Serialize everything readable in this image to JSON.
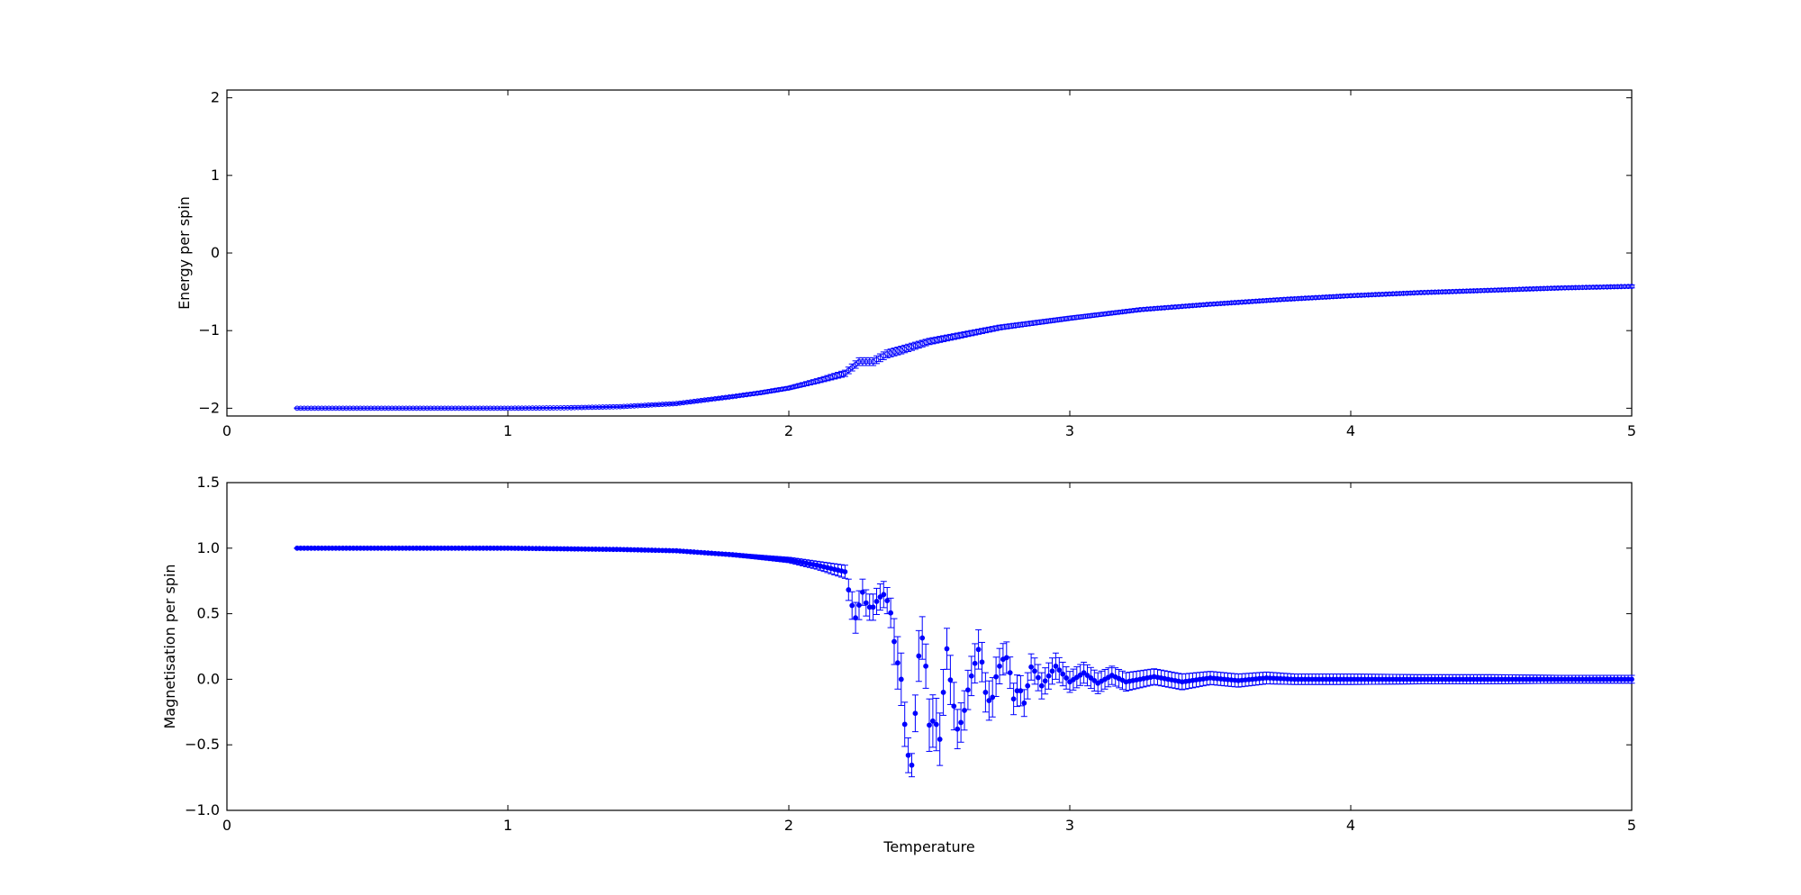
{
  "chart_data": [
    {
      "type": "scatter",
      "ylabel": "Energy per spin",
      "xlabel": "",
      "xlim": [
        0,
        5
      ],
      "ylim": [
        -2.1,
        2.1
      ],
      "xticks": [
        "0",
        "1",
        "2",
        "3",
        "4",
        "5"
      ],
      "yticks": [
        {
          "value": 2,
          "label": "2"
        },
        {
          "value": 1,
          "label": "1"
        },
        {
          "value": 0,
          "label": "0"
        },
        {
          "value": -1,
          "label": "−1"
        },
        {
          "value": -2,
          "label": "−2"
        }
      ],
      "grid": false,
      "series": [
        {
          "color": "#0000ff",
          "marker": "o-open",
          "error_bars": true,
          "points": [
            {
              "x": 0.25,
              "y": -2.0,
              "err": 0.005
            },
            {
              "x": 0.5,
              "y": -2.0,
              "err": 0.005
            },
            {
              "x": 0.75,
              "y": -2.0,
              "err": 0.005
            },
            {
              "x": 1.0,
              "y": -2.0,
              "err": 0.005
            },
            {
              "x": 1.2,
              "y": -1.995,
              "err": 0.006
            },
            {
              "x": 1.4,
              "y": -1.98,
              "err": 0.008
            },
            {
              "x": 1.6,
              "y": -1.94,
              "err": 0.01
            },
            {
              "x": 1.8,
              "y": -1.85,
              "err": 0.015
            },
            {
              "x": 1.9,
              "y": -1.8,
              "err": 0.02
            },
            {
              "x": 2.0,
              "y": -1.74,
              "err": 0.02
            },
            {
              "x": 2.1,
              "y": -1.65,
              "err": 0.03
            },
            {
              "x": 2.2,
              "y": -1.55,
              "err": 0.04
            },
            {
              "x": 2.25,
              "y": -1.4,
              "err": 0.05
            },
            {
              "x": 2.3,
              "y": -1.4,
              "err": 0.05
            },
            {
              "x": 2.35,
              "y": -1.3,
              "err": 0.05
            },
            {
              "x": 2.4,
              "y": -1.25,
              "err": 0.05
            },
            {
              "x": 2.5,
              "y": -1.14,
              "err": 0.04
            },
            {
              "x": 2.75,
              "y": -0.96,
              "err": 0.03
            },
            {
              "x": 3.0,
              "y": -0.84,
              "err": 0.025
            },
            {
              "x": 3.25,
              "y": -0.73,
              "err": 0.02
            },
            {
              "x": 3.5,
              "y": -0.66,
              "err": 0.02
            },
            {
              "x": 3.75,
              "y": -0.6,
              "err": 0.02
            },
            {
              "x": 4.0,
              "y": -0.55,
              "err": 0.02
            },
            {
              "x": 4.25,
              "y": -0.51,
              "err": 0.02
            },
            {
              "x": 4.5,
              "y": -0.48,
              "err": 0.02
            },
            {
              "x": 4.75,
              "y": -0.45,
              "err": 0.02
            },
            {
              "x": 5.0,
              "y": -0.43,
              "err": 0.02
            }
          ]
        }
      ]
    },
    {
      "type": "scatter",
      "ylabel": "Magnetisation per spin",
      "xlabel": "Temperature",
      "xlim": [
        0,
        5
      ],
      "ylim": [
        -1.0,
        1.5
      ],
      "xticks": [
        "0",
        "1",
        "2",
        "3",
        "4",
        "5"
      ],
      "yticks": [
        {
          "value": 1.5,
          "label": "1.5"
        },
        {
          "value": 1.0,
          "label": "1.0"
        },
        {
          "value": 0.5,
          "label": "0.5"
        },
        {
          "value": 0.0,
          "label": "0.0"
        },
        {
          "value": -0.5,
          "label": "−0.5"
        },
        {
          "value": -1.0,
          "label": "−1.0"
        }
      ],
      "grid": false,
      "series": [
        {
          "color": "#0000ff",
          "marker": "o-filled",
          "error_bars": true,
          "points": [
            {
              "x": 0.25,
              "y": 1.0,
              "err": 0.003
            },
            {
              "x": 0.5,
              "y": 1.0,
              "err": 0.003
            },
            {
              "x": 1.0,
              "y": 1.0,
              "err": 0.003
            },
            {
              "x": 1.4,
              "y": 0.99,
              "err": 0.005
            },
            {
              "x": 1.6,
              "y": 0.98,
              "err": 0.008
            },
            {
              "x": 1.8,
              "y": 0.95,
              "err": 0.012
            },
            {
              "x": 2.0,
              "y": 0.91,
              "err": 0.02
            },
            {
              "x": 2.1,
              "y": 0.87,
              "err": 0.03
            },
            {
              "x": 2.2,
              "y": 0.82,
              "err": 0.05
            },
            {
              "x": 2.22,
              "y": 0.6,
              "err": 0.1
            },
            {
              "x": 2.24,
              "y": 0.45,
              "err": 0.12
            },
            {
              "x": 2.26,
              "y": 0.68,
              "err": 0.1
            },
            {
              "x": 2.28,
              "y": 0.55,
              "err": 0.1
            },
            {
              "x": 2.3,
              "y": 0.55,
              "err": 0.1
            },
            {
              "x": 2.32,
              "y": 0.62,
              "err": 0.1
            },
            {
              "x": 2.34,
              "y": 0.65,
              "err": 0.1
            },
            {
              "x": 2.36,
              "y": 0.55,
              "err": 0.1
            },
            {
              "x": 2.38,
              "y": 0.2,
              "err": 0.2
            },
            {
              "x": 2.4,
              "y": 0.0,
              "err": 0.2
            },
            {
              "x": 2.42,
              "y": -0.55,
              "err": 0.15
            },
            {
              "x": 2.44,
              "y": -0.67,
              "err": 0.08
            },
            {
              "x": 2.46,
              "y": 0.15,
              "err": 0.2
            },
            {
              "x": 2.48,
              "y": 0.37,
              "err": 0.15
            },
            {
              "x": 2.5,
              "y": -0.35,
              "err": 0.2
            },
            {
              "x": 2.52,
              "y": -0.3,
              "err": 0.2
            },
            {
              "x": 2.54,
              "y": -0.48,
              "err": 0.2
            },
            {
              "x": 2.56,
              "y": 0.28,
              "err": 0.15
            },
            {
              "x": 2.58,
              "y": -0.1,
              "err": 0.2
            },
            {
              "x": 2.6,
              "y": -0.38,
              "err": 0.15
            },
            {
              "x": 2.62,
              "y": -0.3,
              "err": 0.15
            },
            {
              "x": 2.64,
              "y": -0.05,
              "err": 0.15
            },
            {
              "x": 2.66,
              "y": 0.1,
              "err": 0.15
            },
            {
              "x": 2.68,
              "y": 0.27,
              "err": 0.15
            },
            {
              "x": 2.7,
              "y": -0.1,
              "err": 0.15
            },
            {
              "x": 2.72,
              "y": -0.2,
              "err": 0.15
            },
            {
              "x": 2.74,
              "y": 0.05,
              "err": 0.15
            },
            {
              "x": 2.76,
              "y": 0.15,
              "err": 0.12
            },
            {
              "x": 2.78,
              "y": 0.17,
              "err": 0.12
            },
            {
              "x": 2.8,
              "y": -0.15,
              "err": 0.12
            },
            {
              "x": 2.82,
              "y": -0.05,
              "err": 0.12
            },
            {
              "x": 2.84,
              "y": -0.2,
              "err": 0.1
            },
            {
              "x": 2.86,
              "y": 0.1,
              "err": 0.1
            },
            {
              "x": 2.88,
              "y": 0.05,
              "err": 0.1
            },
            {
              "x": 2.9,
              "y": -0.05,
              "err": 0.1
            },
            {
              "x": 2.95,
              "y": 0.1,
              "err": 0.1
            },
            {
              "x": 3.0,
              "y": -0.02,
              "err": 0.08
            },
            {
              "x": 3.05,
              "y": 0.05,
              "err": 0.08
            },
            {
              "x": 3.1,
              "y": -0.03,
              "err": 0.08
            },
            {
              "x": 3.15,
              "y": 0.03,
              "err": 0.07
            },
            {
              "x": 3.2,
              "y": -0.02,
              "err": 0.07
            },
            {
              "x": 3.3,
              "y": 0.02,
              "err": 0.06
            },
            {
              "x": 3.4,
              "y": -0.02,
              "err": 0.06
            },
            {
              "x": 3.5,
              "y": 0.01,
              "err": 0.05
            },
            {
              "x": 3.6,
              "y": -0.01,
              "err": 0.05
            },
            {
              "x": 3.7,
              "y": 0.01,
              "err": 0.045
            },
            {
              "x": 3.8,
              "y": 0.0,
              "err": 0.04
            },
            {
              "x": 4.0,
              "y": 0.0,
              "err": 0.04
            },
            {
              "x": 4.25,
              "y": 0.0,
              "err": 0.035
            },
            {
              "x": 4.5,
              "y": 0.0,
              "err": 0.035
            },
            {
              "x": 4.75,
              "y": 0.0,
              "err": 0.03
            },
            {
              "x": 5.0,
              "y": 0.0,
              "err": 0.03
            }
          ]
        }
      ]
    }
  ]
}
